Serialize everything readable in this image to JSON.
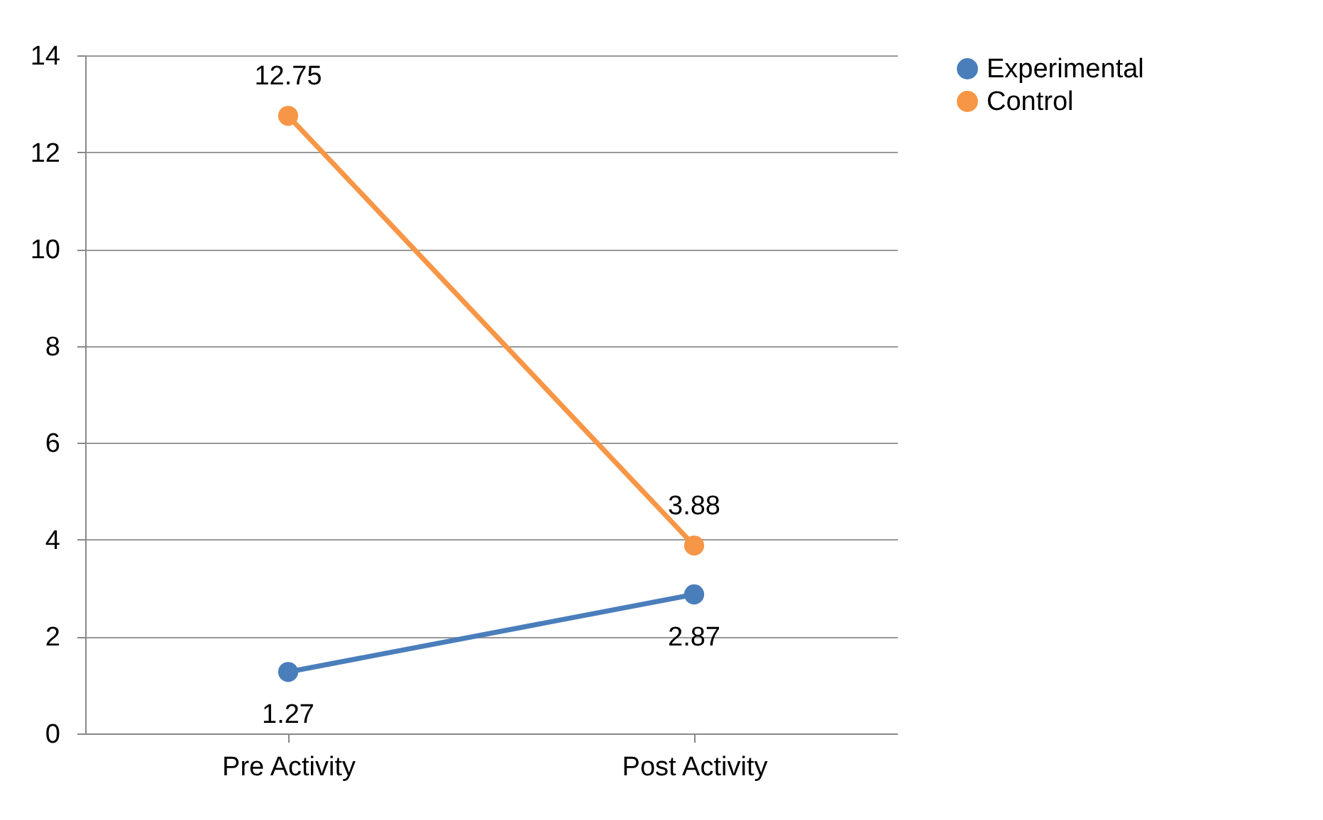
{
  "chart_data": {
    "type": "line",
    "categories": [
      "Pre Activity",
      "Post Activity"
    ],
    "series": [
      {
        "name": "Experimental",
        "color": "#4a7ebb",
        "values": [
          1.27,
          2.87
        ]
      },
      {
        "name": "Control",
        "color": "#f79646",
        "values": [
          12.75,
          3.88
        ]
      }
    ],
    "ylim": [
      0,
      14
    ],
    "yticks": [
      0,
      2,
      4,
      6,
      8,
      10,
      12,
      14
    ],
    "grid": "y",
    "legend": "right",
    "marker": "circle",
    "data_labels": true
  }
}
